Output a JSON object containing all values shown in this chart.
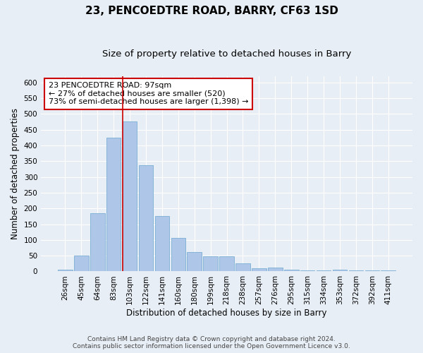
{
  "title": "23, PENCOEDTRE ROAD, BARRY, CF63 1SD",
  "subtitle": "Size of property relative to detached houses in Barry",
  "xlabel": "Distribution of detached houses by size in Barry",
  "ylabel": "Number of detached properties",
  "categories": [
    "26sqm",
    "45sqm",
    "64sqm",
    "83sqm",
    "103sqm",
    "122sqm",
    "141sqm",
    "160sqm",
    "180sqm",
    "199sqm",
    "218sqm",
    "238sqm",
    "257sqm",
    "276sqm",
    "295sqm",
    "315sqm",
    "334sqm",
    "353sqm",
    "372sqm",
    "392sqm",
    "411sqm"
  ],
  "values": [
    5,
    50,
    185,
    425,
    475,
    338,
    175,
    107,
    62,
    47,
    47,
    25,
    10,
    12,
    6,
    4,
    3,
    5,
    4,
    3,
    4
  ],
  "bar_color": "#aec6e8",
  "bar_edge_color": "#7aafd4",
  "background_color": "#e8eef5",
  "grid_color": "#ffffff",
  "vline_x_index": 4,
  "vline_color": "#cc0000",
  "annotation_text": "23 PENCOEDTRE ROAD: 97sqm\n← 27% of detached houses are smaller (520)\n73% of semi-detached houses are larger (1,398) →",
  "annotation_box_color": "#ffffff",
  "annotation_box_edge_color": "#cc0000",
  "ylim": [
    0,
    620
  ],
  "yticks": [
    0,
    50,
    100,
    150,
    200,
    250,
    300,
    350,
    400,
    450,
    500,
    550,
    600
  ],
  "footer_line1": "Contains HM Land Registry data © Crown copyright and database right 2024.",
  "footer_line2": "Contains public sector information licensed under the Open Government Licence v3.0.",
  "title_fontsize": 11,
  "subtitle_fontsize": 9.5,
  "axis_label_fontsize": 8.5,
  "tick_fontsize": 7.5,
  "annotation_fontsize": 8,
  "footer_fontsize": 6.5
}
